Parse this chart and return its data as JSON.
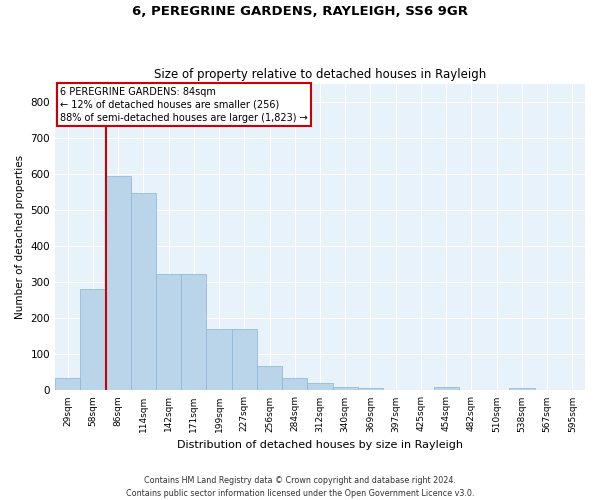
{
  "title": "6, PEREGRINE GARDENS, RAYLEIGH, SS6 9GR",
  "subtitle": "Size of property relative to detached houses in Rayleigh",
  "xlabel": "Distribution of detached houses by size in Rayleigh",
  "ylabel": "Number of detached properties",
  "bar_color": "#bad4ea",
  "bar_edge_color": "#8cb4d4",
  "background_color": "#e8f2fb",
  "grid_color": "#ffffff",
  "annotation_box_color": "#cc0000",
  "vline_color": "#cc0000",
  "vline_x_index": 2,
  "annotation_text": "6 PEREGRINE GARDENS: 84sqm\n← 12% of detached houses are smaller (256)\n88% of semi-detached houses are larger (1,823) →",
  "categories": [
    "29sqm",
    "58sqm",
    "86sqm",
    "114sqm",
    "142sqm",
    "171sqm",
    "199sqm",
    "227sqm",
    "256sqm",
    "284sqm",
    "312sqm",
    "340sqm",
    "369sqm",
    "397sqm",
    "425sqm",
    "454sqm",
    "482sqm",
    "510sqm",
    "538sqm",
    "567sqm",
    "595sqm"
  ],
  "bar_heights": [
    35,
    280,
    595,
    548,
    322,
    322,
    170,
    170,
    67,
    35,
    20,
    10,
    8,
    0,
    0,
    10,
    0,
    0,
    8,
    0,
    0
  ],
  "ylim": [
    0,
    850
  ],
  "yticks": [
    0,
    100,
    200,
    300,
    400,
    500,
    600,
    700,
    800
  ],
  "footer": "Contains HM Land Registry data © Crown copyright and database right 2024.\nContains public sector information licensed under the Open Government Licence v3.0."
}
